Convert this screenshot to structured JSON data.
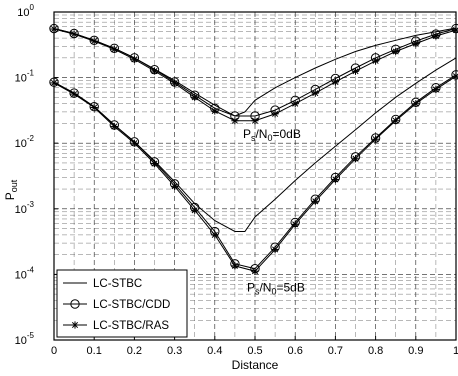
{
  "chart_data": {
    "type": "line",
    "xlabel": "Distance",
    "ylabel": "P",
    "ylabel_sub": "out",
    "x_scale": "linear",
    "y_scale": "log",
    "xlim": [
      0,
      1
    ],
    "ylim": [
      1e-05,
      1
    ],
    "x_ticks": [
      "0",
      "0.1",
      "0.2",
      "0.3",
      "0.4",
      "0.5",
      "0.6",
      "0.7",
      "0.8",
      "0.9",
      "1"
    ],
    "y_ticks": [
      {
        "base": "10",
        "exp": "-5",
        "value": 1e-05
      },
      {
        "base": "10",
        "exp": "-4",
        "value": 0.0001
      },
      {
        "base": "10",
        "exp": "-3",
        "value": 0.001
      },
      {
        "base": "10",
        "exp": "-2",
        "value": 0.01
      },
      {
        "base": "10",
        "exp": "-1",
        "value": 0.1
      },
      {
        "base": "10",
        "exp": "0",
        "value": 1
      }
    ],
    "grid": true,
    "legend_position": "bottom-left",
    "legend": [
      {
        "label": "LC-STBC",
        "marker": "none"
      },
      {
        "label": "LC-STBC/CDD",
        "marker": "circle"
      },
      {
        "label": "LC-STBC/RAS",
        "marker": "star"
      }
    ],
    "annotations": [
      {
        "base": "P",
        "sub1": "s",
        "mid": "/N",
        "sub2": "0",
        "tail": "=0dB",
        "x": 0.47,
        "y": 0.012
      },
      {
        "base": "P",
        "sub1": "s",
        "mid": "/N",
        "sub2": "0",
        "tail": "=5dB",
        "x": 0.48,
        "y": 5.5e-05
      }
    ],
    "groups": [
      {
        "condition": "0dB",
        "series": [
          {
            "legend": "LC-STBC",
            "marker": "none",
            "x": [
              0,
              0.05,
              0.1,
              0.15,
              0.2,
              0.25,
              0.3,
              0.35,
              0.4,
              0.45,
              0.475,
              0.5,
              0.55,
              0.6,
              0.65,
              0.7,
              0.75,
              0.8,
              0.85,
              0.9,
              0.95,
              1
            ],
            "y": [
              0.56,
              0.47,
              0.37,
              0.28,
              0.2,
              0.135,
              0.09,
              0.058,
              0.038,
              0.026,
              0.03,
              0.045,
              0.07,
              0.1,
              0.14,
              0.19,
              0.25,
              0.31,
              0.37,
              0.44,
              0.5,
              0.57
            ]
          },
          {
            "legend": "LC-STBC/CDD",
            "marker": "circle",
            "x": [
              0,
              0.05,
              0.1,
              0.15,
              0.2,
              0.25,
              0.3,
              0.35,
              0.4,
              0.45,
              0.5,
              0.55,
              0.6,
              0.65,
              0.7,
              0.75,
              0.8,
              0.85,
              0.9,
              0.95,
              1
            ],
            "y": [
              0.56,
              0.47,
              0.37,
              0.28,
              0.2,
              0.132,
              0.086,
              0.054,
              0.034,
              0.026,
              0.026,
              0.032,
              0.045,
              0.066,
              0.097,
              0.14,
              0.2,
              0.27,
              0.36,
              0.46,
              0.56
            ]
          },
          {
            "legend": "LC-STBC/RAS",
            "marker": "star",
            "x": [
              0,
              0.05,
              0.1,
              0.15,
              0.2,
              0.25,
              0.3,
              0.35,
              0.4,
              0.45,
              0.5,
              0.55,
              0.6,
              0.65,
              0.7,
              0.75,
              0.8,
              0.85,
              0.9,
              0.95,
              1
            ],
            "y": [
              0.55,
              0.46,
              0.36,
              0.27,
              0.19,
              0.126,
              0.082,
              0.05,
              0.031,
              0.022,
              0.022,
              0.028,
              0.04,
              0.058,
              0.086,
              0.125,
              0.18,
              0.25,
              0.33,
              0.43,
              0.53
            ]
          }
        ]
      },
      {
        "condition": "5dB",
        "series": [
          {
            "legend": "LC-STBC",
            "marker": "none",
            "x": [
              0,
              0.05,
              0.1,
              0.15,
              0.2,
              0.25,
              0.3,
              0.35,
              0.4,
              0.45,
              0.475,
              0.5,
              0.55,
              0.6,
              0.65,
              0.7,
              0.75,
              0.8,
              0.85,
              0.9,
              0.95,
              1
            ],
            "y": [
              0.085,
              0.058,
              0.036,
              0.019,
              0.0105,
              0.0054,
              0.0026,
              0.0012,
              0.00066,
              0.00045,
              0.00045,
              0.00075,
              0.0014,
              0.0027,
              0.005,
              0.009,
              0.016,
              0.029,
              0.05,
              0.082,
              0.13,
              0.2
            ]
          },
          {
            "legend": "LC-STBC/CDD",
            "marker": "circle",
            "x": [
              0,
              0.05,
              0.1,
              0.15,
              0.2,
              0.25,
              0.3,
              0.35,
              0.4,
              0.45,
              0.5,
              0.55,
              0.6,
              0.65,
              0.7,
              0.75,
              0.8,
              0.85,
              0.9,
              0.95,
              1
            ],
            "y": [
              0.085,
              0.058,
              0.036,
              0.019,
              0.0105,
              0.0052,
              0.0024,
              0.00105,
              0.00045,
              0.000145,
              0.000122,
              0.00026,
              0.00062,
              0.0014,
              0.003,
              0.0062,
              0.012,
              0.023,
              0.042,
              0.07,
              0.11
            ]
          },
          {
            "legend": "LC-STBC/RAS",
            "marker": "star",
            "x": [
              0,
              0.05,
              0.1,
              0.15,
              0.2,
              0.25,
              0.3,
              0.35,
              0.4,
              0.45,
              0.5,
              0.55,
              0.6,
              0.65,
              0.7,
              0.75,
              0.8,
              0.85,
              0.9,
              0.95,
              1
            ],
            "y": [
              0.083,
              0.056,
              0.035,
              0.018,
              0.01,
              0.0049,
              0.0022,
              0.00095,
              0.0004,
              0.000135,
              0.000112,
              0.00024,
              0.00058,
              0.0013,
              0.0028,
              0.0058,
              0.0115,
              0.022,
              0.04,
              0.066,
              0.105
            ]
          }
        ]
      }
    ]
  }
}
